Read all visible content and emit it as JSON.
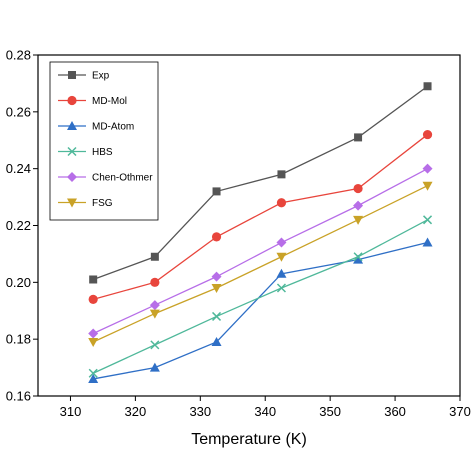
{
  "chart_data": {
    "type": "line",
    "title": "",
    "xlabel": "Temperature (K)",
    "ylabel": "",
    "xlim": [
      305,
      370
    ],
    "ylim": [
      0.16,
      0.28
    ],
    "xticks": [
      310,
      320,
      330,
      340,
      350,
      360,
      370
    ],
    "yticks": [
      0.16,
      0.18,
      0.2,
      0.22,
      0.24,
      0.26,
      0.28
    ],
    "xtick_labels": [
      "310",
      "320",
      "330",
      "340",
      "350",
      "360",
      "370"
    ],
    "ytick_labels": [
      "0.16",
      "0.18",
      "0.20",
      "0.22",
      "0.24",
      "0.26",
      "0.28"
    ],
    "grid": false,
    "legend_position": "top-left",
    "x": [
      313.5,
      323,
      332.5,
      342.5,
      354.3,
      365
    ],
    "series": [
      {
        "name": "Exp",
        "marker": "square",
        "color": "#555555",
        "values": [
          0.201,
          0.209,
          0.232,
          0.238,
          0.251,
          0.269
        ]
      },
      {
        "name": "MD-Mol",
        "marker": "circle",
        "color": "#e8453c",
        "values": [
          0.194,
          0.2,
          0.216,
          0.228,
          0.233,
          0.252
        ]
      },
      {
        "name": "MD-Atom",
        "marker": "triangle-up",
        "color": "#2f6fc6",
        "values": [
          0.166,
          0.17,
          0.179,
          0.203,
          0.208,
          0.214
        ]
      },
      {
        "name": "HBS",
        "marker": "x",
        "color": "#4fb89a",
        "values": [
          0.168,
          0.178,
          0.188,
          0.198,
          0.209,
          0.222
        ]
      },
      {
        "name": "Chen-Othmer",
        "marker": "diamond",
        "color": "#b76ee8",
        "values": [
          0.182,
          0.192,
          0.202,
          0.214,
          0.227,
          0.24
        ]
      },
      {
        "name": "FSG",
        "marker": "triangle-down",
        "color": "#c9a227",
        "values": [
          0.179,
          0.189,
          0.198,
          0.209,
          0.222,
          0.234
        ]
      }
    ]
  }
}
